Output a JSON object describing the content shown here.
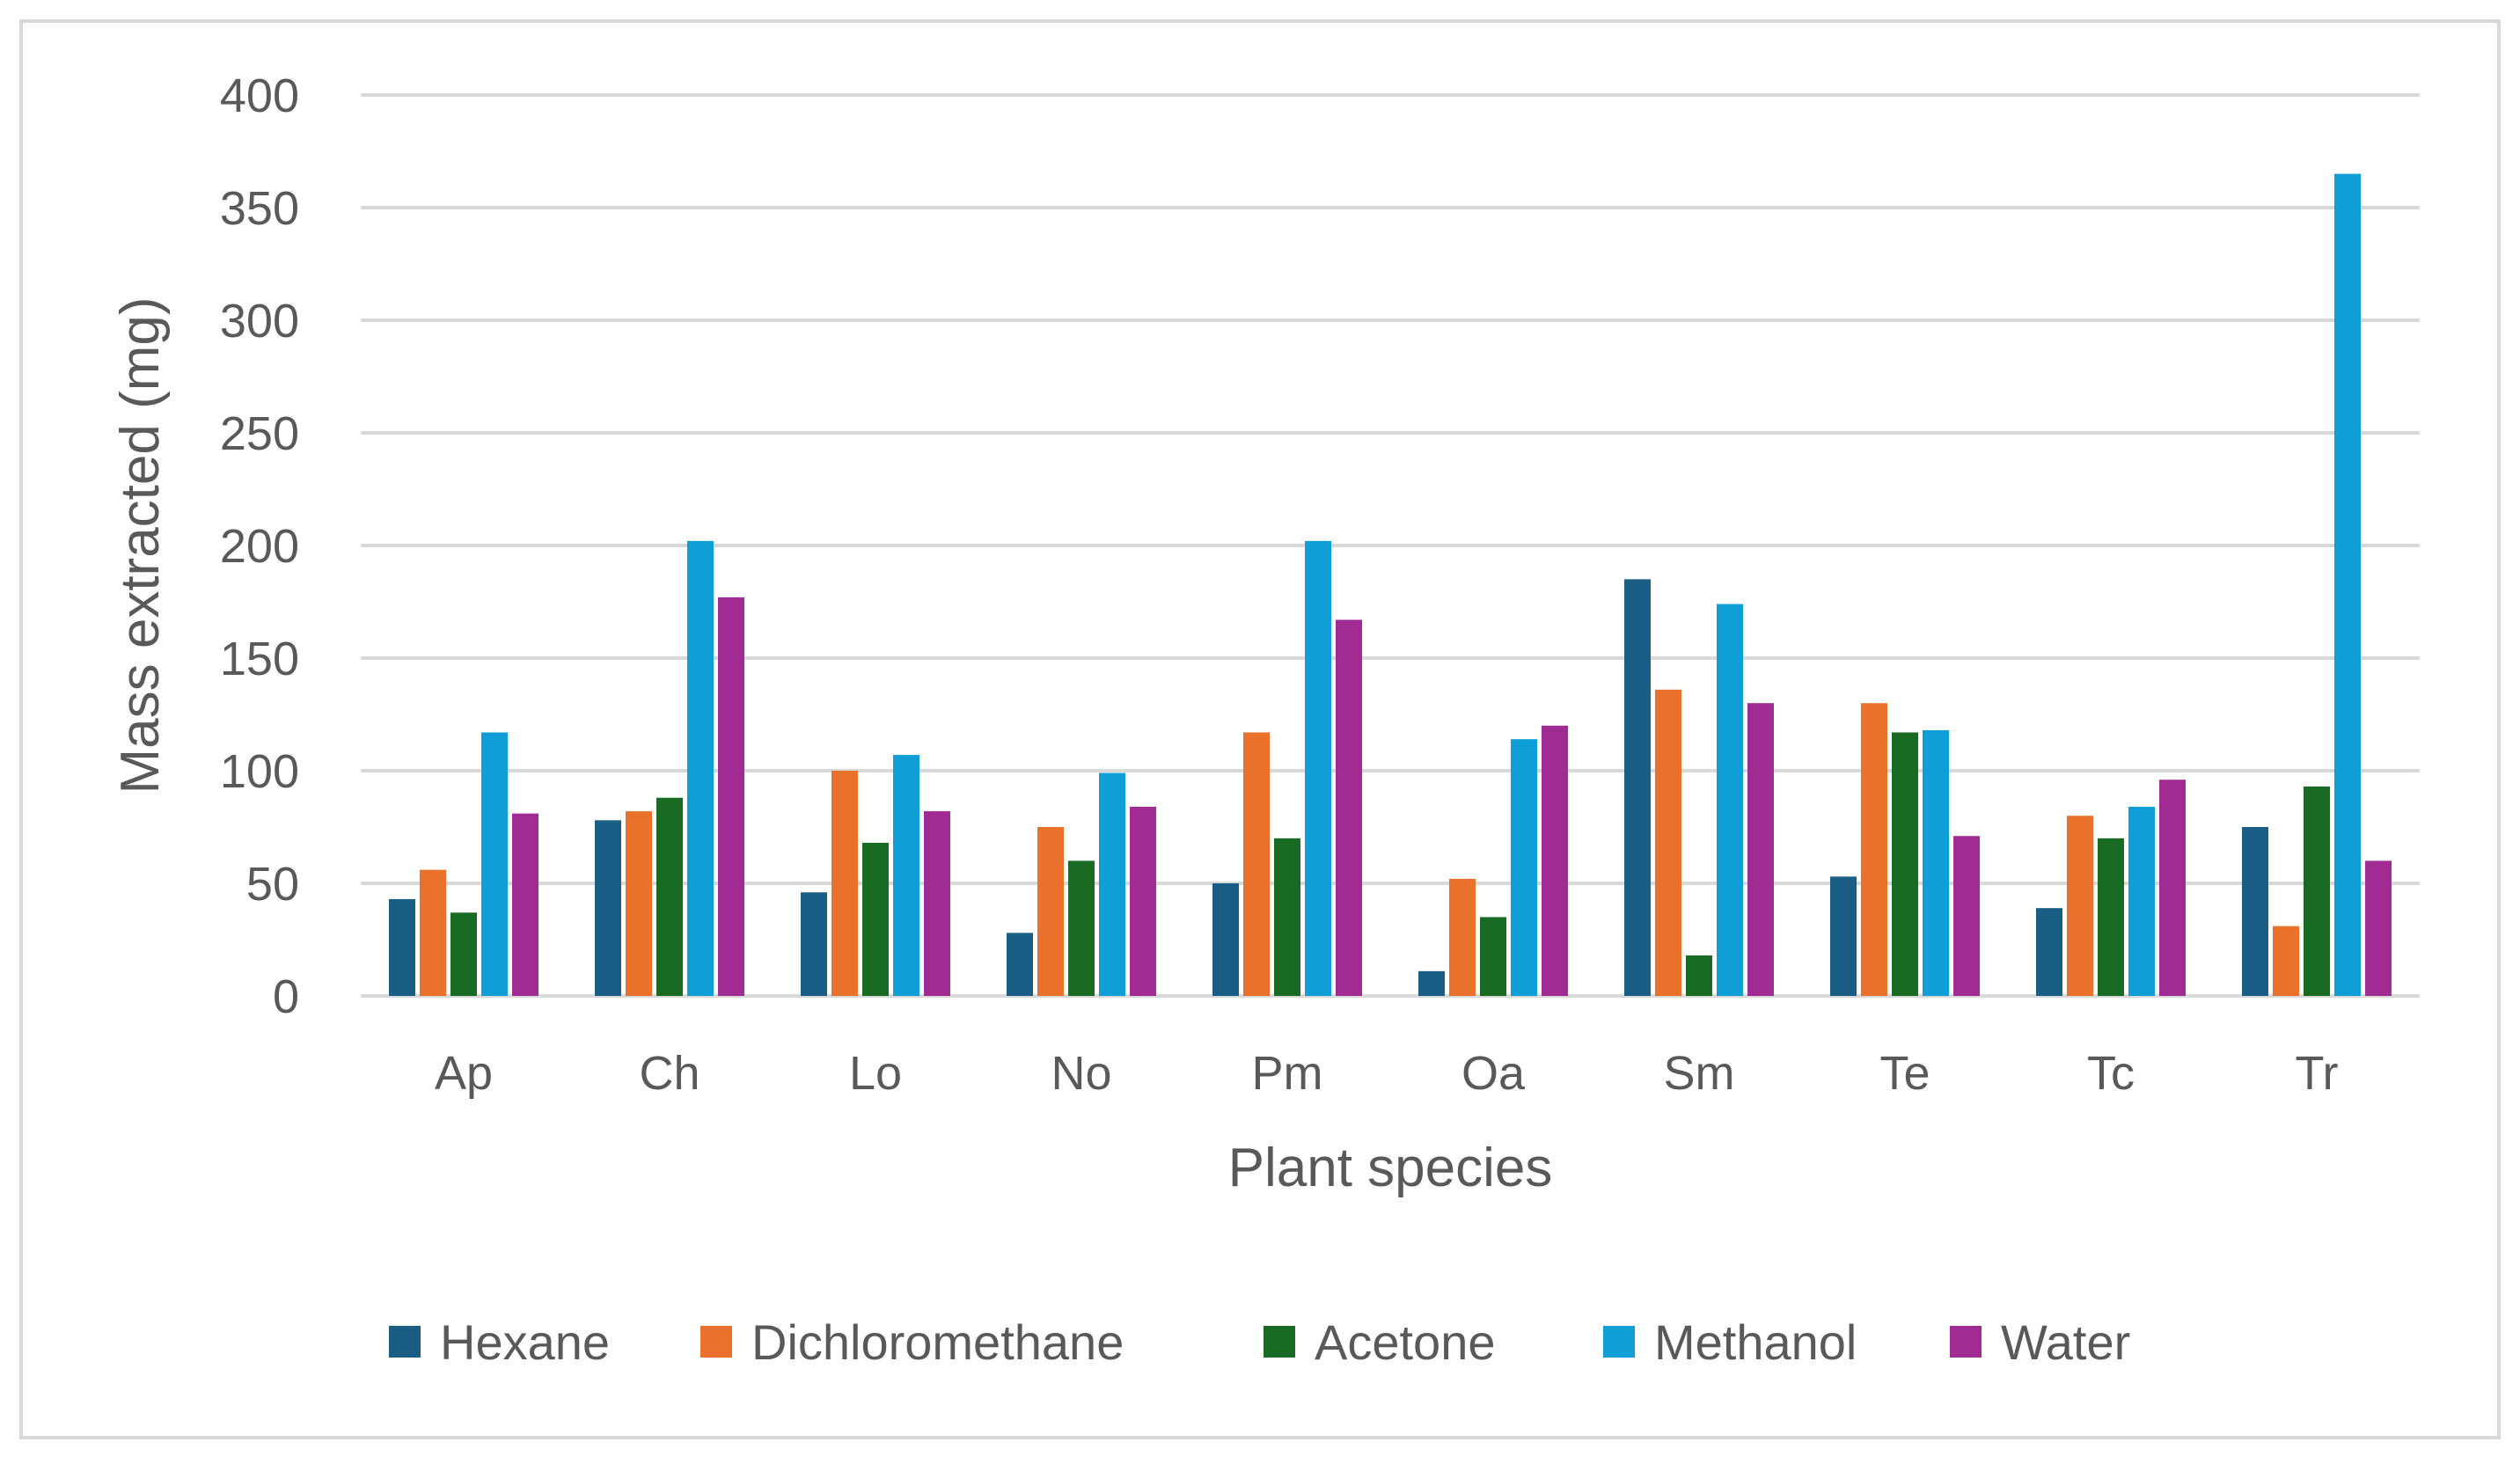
{
  "chart_data": {
    "type": "bar",
    "title": "",
    "xlabel": "Plant species",
    "ylabel": "Mass extracted (mg)",
    "ylim": [
      0,
      400
    ],
    "yticks": [
      0,
      50,
      100,
      150,
      200,
      250,
      300,
      350,
      400
    ],
    "grid": true,
    "legend_position": "bottom",
    "categories": [
      "Ap",
      "Ch",
      "Lo",
      "No",
      "Pm",
      "Oa",
      "Sm",
      "Te",
      "Tc",
      "Tr"
    ],
    "series": [
      {
        "name": "Hexane",
        "color": "#1a5e85",
        "values": [
          43,
          78,
          46,
          28,
          50,
          11,
          185,
          53,
          39,
          75
        ]
      },
      {
        "name": "Dichloromethane",
        "color": "#e9712b",
        "values": [
          56,
          82,
          100,
          75,
          117,
          52,
          136,
          130,
          80,
          31
        ]
      },
      {
        "name": "Acetone",
        "color": "#196b24",
        "values": [
          37,
          88,
          68,
          60,
          70,
          35,
          18,
          117,
          70,
          93
        ]
      },
      {
        "name": "Methanol",
        "color": "#0f9ed5",
        "values": [
          117,
          202,
          107,
          99,
          202,
          114,
          174,
          118,
          84,
          365
        ]
      },
      {
        "name": "Water",
        "color": "#a02b93",
        "values": [
          81,
          177,
          82,
          84,
          167,
          120,
          130,
          71,
          96,
          60
        ]
      }
    ]
  }
}
